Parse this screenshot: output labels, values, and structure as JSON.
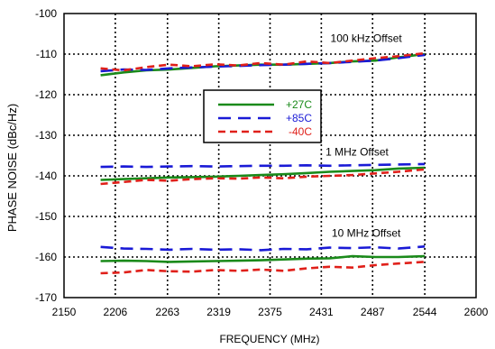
{
  "chart_data": {
    "type": "line",
    "title": "",
    "xlabel": "FREQUENCY (MHz)",
    "ylabel": "PHASE NOISE (dBc/Hz)",
    "xlim": [
      2150,
      2600
    ],
    "ylim": [
      -170,
      -100
    ],
    "x_ticks": [
      2150,
      2206,
      2263,
      2319,
      2375,
      2431,
      2487,
      2544,
      2600
    ],
    "y_ticks": [
      -170,
      -160,
      -150,
      -140,
      -130,
      -120,
      -110,
      -100
    ],
    "grid": "dotted",
    "legend_position": "center",
    "annotations": [
      {
        "text": "100 kHz Offset",
        "x": 2480,
        "y": -107
      },
      {
        "text": "1 MHz Offset",
        "x": 2470,
        "y": -135
      },
      {
        "text": "10 MHz Offset",
        "x": 2480,
        "y": -155
      }
    ],
    "series": [
      {
        "name": "+27C",
        "color": "#1a8a1a",
        "dash": "solid",
        "groups": [
          {
            "offset": "100 kHz Offset",
            "x": [
              2190,
              2215,
              2240,
              2265,
              2290,
              2315,
              2340,
              2365,
              2390,
              2415,
              2440,
              2465,
              2490,
              2515,
              2544
            ],
            "y": [
              -115.2,
              -114.5,
              -114.0,
              -113.8,
              -113.4,
              -113.0,
              -112.8,
              -112.6,
              -112.6,
              -112.4,
              -112.2,
              -111.8,
              -111.6,
              -110.8,
              -110.0
            ]
          },
          {
            "offset": "1 MHz Offset",
            "x": [
              2190,
              2215,
              2240,
              2265,
              2290,
              2315,
              2340,
              2365,
              2390,
              2415,
              2440,
              2465,
              2490,
              2515,
              2544
            ],
            "y": [
              -141.0,
              -140.8,
              -140.6,
              -140.4,
              -140.3,
              -140.2,
              -140.0,
              -139.8,
              -139.6,
              -139.3,
              -139.0,
              -138.8,
              -138.6,
              -138.2,
              -138.0
            ]
          },
          {
            "offset": "10 MHz Offset",
            "x": [
              2190,
              2215,
              2240,
              2265,
              2290,
              2315,
              2340,
              2365,
              2390,
              2415,
              2440,
              2465,
              2490,
              2515,
              2544
            ],
            "y": [
              -161.0,
              -160.9,
              -161.0,
              -161.2,
              -161.1,
              -161.0,
              -160.9,
              -160.8,
              -160.6,
              -160.4,
              -160.3,
              -159.8,
              -160.0,
              -160.0,
              -159.8
            ]
          }
        ]
      },
      {
        "name": "+85C",
        "color": "#1a1ad6",
        "dash": "long-dash",
        "groups": [
          {
            "offset": "100 kHz Offset",
            "x": [
              2190,
              2215,
              2240,
              2265,
              2290,
              2315,
              2340,
              2365,
              2390,
              2415,
              2440,
              2465,
              2490,
              2515,
              2544
            ],
            "y": [
              -114.2,
              -113.8,
              -113.9,
              -113.5,
              -113.3,
              -113.1,
              -112.9,
              -112.7,
              -112.6,
              -112.4,
              -112.2,
              -111.9,
              -111.6,
              -111.0,
              -110.2
            ]
          },
          {
            "offset": "1 MHz Offset",
            "x": [
              2190,
              2215,
              2240,
              2265,
              2290,
              2315,
              2340,
              2365,
              2390,
              2415,
              2440,
              2465,
              2490,
              2515,
              2544
            ],
            "y": [
              -137.8,
              -137.7,
              -137.8,
              -137.7,
              -137.6,
              -137.7,
              -137.6,
              -137.5,
              -137.5,
              -137.4,
              -137.5,
              -137.4,
              -137.3,
              -137.2,
              -137.1
            ]
          },
          {
            "offset": "10 MHz Offset",
            "x": [
              2190,
              2215,
              2240,
              2265,
              2290,
              2315,
              2340,
              2365,
              2390,
              2415,
              2440,
              2465,
              2490,
              2515,
              2544
            ],
            "y": [
              -157.5,
              -157.9,
              -158.0,
              -158.2,
              -158.0,
              -158.2,
              -158.1,
              -158.3,
              -158.0,
              -158.1,
              -157.7,
              -157.8,
              -157.6,
              -157.9,
              -157.4
            ]
          }
        ]
      },
      {
        "name": "-40C",
        "color": "#e0201a",
        "dash": "dash",
        "groups": [
          {
            "offset": "100 kHz Offset",
            "x": [
              2190,
              2215,
              2240,
              2265,
              2290,
              2315,
              2340,
              2365,
              2390,
              2415,
              2440,
              2465,
              2490,
              2515,
              2544
            ],
            "y": [
              -113.5,
              -114.0,
              -113.2,
              -112.6,
              -113.0,
              -112.5,
              -112.8,
              -112.2,
              -112.6,
              -111.8,
              -112.2,
              -111.6,
              -111.0,
              -110.5,
              -109.8
            ]
          },
          {
            "offset": "1 MHz Offset",
            "x": [
              2190,
              2215,
              2240,
              2265,
              2290,
              2315,
              2340,
              2365,
              2390,
              2415,
              2440,
              2465,
              2490,
              2515,
              2544
            ],
            "y": [
              -142.0,
              -141.5,
              -141.0,
              -141.2,
              -140.8,
              -140.6,
              -140.7,
              -140.4,
              -140.6,
              -140.2,
              -140.0,
              -139.8,
              -139.4,
              -139.0,
              -138.4
            ]
          },
          {
            "offset": "10 MHz Offset",
            "x": [
              2190,
              2215,
              2240,
              2265,
              2290,
              2315,
              2340,
              2365,
              2390,
              2415,
              2440,
              2465,
              2490,
              2515,
              2544
            ],
            "y": [
              -164.0,
              -163.8,
              -163.2,
              -163.5,
              -163.6,
              -163.2,
              -163.4,
              -163.1,
              -163.4,
              -162.8,
              -162.4,
              -162.6,
              -162.0,
              -161.6,
              -161.2
            ]
          }
        ]
      }
    ]
  }
}
